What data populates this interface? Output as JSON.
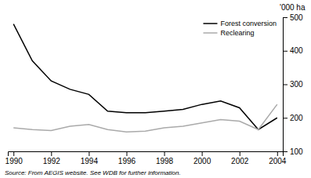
{
  "chart_data": {
    "type": "line",
    "ylabel": "'000 ha",
    "annotations": [
      "Source:  From AEGIS website.   See WDB for further information."
    ],
    "x": [
      1990,
      1991,
      1992,
      1993,
      1994,
      1995,
      1996,
      1997,
      1998,
      1999,
      2000,
      2001,
      2002,
      2003,
      2004
    ],
    "series": [
      {
        "name": "Forest conversion",
        "color": "#000000",
        "values": [
          480,
          370,
          310,
          285,
          270,
          220,
          215,
          215,
          220,
          225,
          240,
          250,
          230,
          165,
          200
        ]
      },
      {
        "name": "Reclearing",
        "color": "#aaaaaa",
        "values": [
          170,
          165,
          162,
          175,
          180,
          165,
          158,
          160,
          170,
          175,
          185,
          195,
          190,
          165,
          240
        ]
      }
    ],
    "xlim": [
      1989.7,
      2004.3
    ],
    "xticks": [
      1990,
      1992,
      1994,
      1996,
      1998,
      2000,
      2002,
      2004
    ],
    "ylim": [
      100,
      500
    ],
    "yticks": [
      100,
      200,
      300,
      400,
      500
    ],
    "legend": "upper right",
    "grid": false
  }
}
